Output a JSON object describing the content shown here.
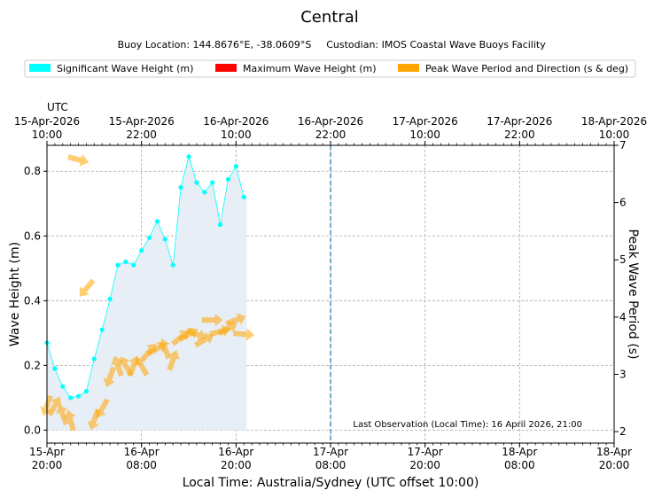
{
  "chart_data": {
    "type": "line",
    "title": "Central",
    "buoy_location": "Buoy Location: 144.8676°E, -38.0609°S",
    "custodian": "Custodian: IMOS Coastal Wave Buoys Facility",
    "legend": [
      {
        "label": "Significant Wave Height (m)",
        "color": "#00ffff"
      },
      {
        "label": "Maximum Wave Height (m)",
        "color": "#ff0000"
      },
      {
        "label": "Peak Wave Period and Direction (s & deg)",
        "color": "#ffa500"
      }
    ],
    "xlabel": "Local Time: Australia/Sydney (UTC offset 10:00)",
    "ylabel": "Wave Height (m)",
    "y2label": "Peak Wave Period (s)",
    "top_axis_label": "UTC",
    "xlim_hours": [
      0,
      72
    ],
    "ylim": [
      -0.04,
      0.88
    ],
    "y2lim": [
      1.8,
      7.0
    ],
    "yticks": [
      "0.0",
      "0.2",
      "0.4",
      "0.6",
      "0.8"
    ],
    "y2ticks": [
      "2",
      "3",
      "4",
      "5",
      "6",
      "7"
    ],
    "bottom_ticks": [
      {
        "h": 0,
        "date": "15-Apr",
        "time": "20:00"
      },
      {
        "h": 12,
        "date": "16-Apr",
        "time": "08:00"
      },
      {
        "h": 24,
        "date": "16-Apr",
        "time": "20:00"
      },
      {
        "h": 36,
        "date": "17-Apr",
        "time": "08:00"
      },
      {
        "h": 48,
        "date": "17-Apr",
        "time": "20:00"
      },
      {
        "h": 60,
        "date": "18-Apr",
        "time": "08:00"
      },
      {
        "h": 72,
        "date": "18-Apr",
        "time": "20:00"
      }
    ],
    "top_ticks": [
      {
        "h": 0,
        "date": "15-Apr-2026",
        "time": "10:00"
      },
      {
        "h": 12,
        "date": "15-Apr-2026",
        "time": "22:00"
      },
      {
        "h": 24,
        "date": "16-Apr-2026",
        "time": "10:00"
      },
      {
        "h": 36,
        "date": "16-Apr-2026",
        "time": "22:00"
      },
      {
        "h": 48,
        "date": "17-Apr-2026",
        "time": "10:00"
      },
      {
        "h": 60,
        "date": "17-Apr-2026",
        "time": "22:00"
      },
      {
        "h": 72,
        "date": "18-Apr-2026",
        "time": "10:00"
      }
    ],
    "current_time_marker_h": 36,
    "last_observation": "Last Observation (Local Time): 16 April 2026, 21:00",
    "significant_wave_height": {
      "hours": [
        0,
        1,
        2,
        3,
        4,
        5,
        6,
        7,
        8,
        9,
        10,
        11,
        12,
        13,
        14,
        15,
        16,
        17,
        18,
        19,
        20,
        21,
        22,
        23,
        24,
        25
      ],
      "values": [
        0.27,
        0.19,
        0.135,
        0.1,
        0.105,
        0.12,
        0.22,
        0.31,
        0.405,
        0.51,
        0.52,
        0.51,
        0.555,
        0.595,
        0.645,
        0.59,
        0.51,
        0.75,
        0.845,
        0.765,
        0.735,
        0.765,
        0.635,
        0.775,
        0.815,
        0.72
      ]
    },
    "peak_wave_period_direction": {
      "hours": [
        0,
        1,
        2,
        3,
        4,
        5,
        6,
        7,
        8,
        9,
        10,
        11,
        12,
        13,
        14,
        15,
        16,
        17,
        18,
        19,
        20,
        21,
        22,
        23,
        24,
        25
      ],
      "period_s": [
        2.45,
        2.45,
        2.3,
        2.2,
        6.75,
        4.5,
        2.2,
        2.4,
        2.95,
        3.15,
        3.15,
        3.15,
        3.15,
        3.4,
        3.45,
        3.45,
        3.25,
        3.65,
        3.7,
        3.7,
        3.6,
        3.95,
        3.75,
        3.8,
        3.95,
        3.7
      ],
      "direction_deg": [
        200,
        30,
        340,
        345,
        105,
        220,
        200,
        210,
        200,
        340,
        330,
        20,
        330,
        40,
        60,
        340,
        20,
        50,
        60,
        110,
        60,
        90,
        75,
        60,
        70,
        95
      ]
    }
  }
}
